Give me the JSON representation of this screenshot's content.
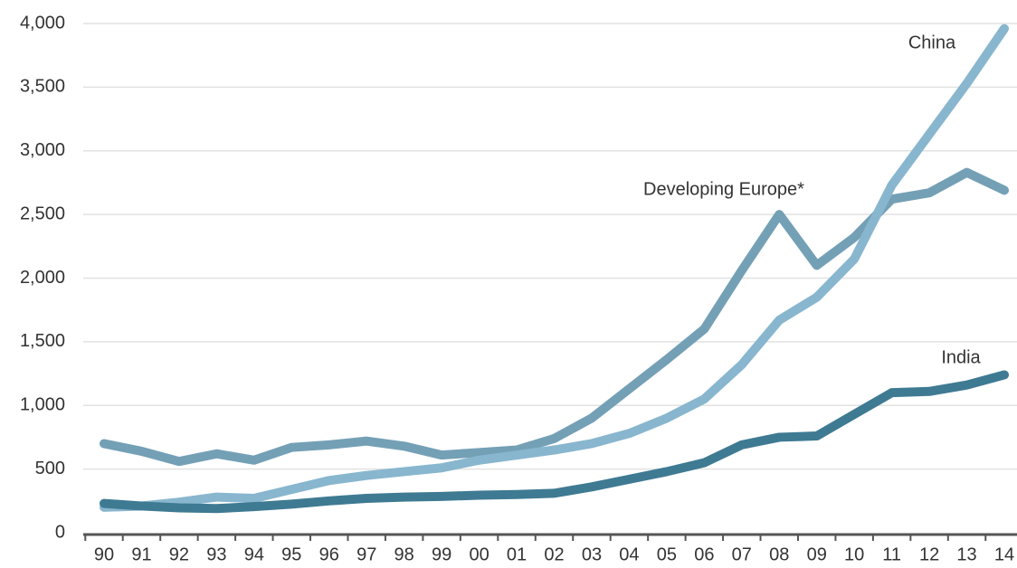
{
  "chart_data": {
    "type": "line",
    "categories": [
      "90",
      "91",
      "92",
      "93",
      "94",
      "95",
      "96",
      "97",
      "98",
      "99",
      "00",
      "01",
      "02",
      "03",
      "04",
      "05",
      "06",
      "07",
      "08",
      "09",
      "10",
      "11",
      "12",
      "13",
      "14"
    ],
    "series": [
      {
        "name": "Developing Europe*",
        "color": "#74a0b6",
        "values": [
          700,
          640,
          560,
          620,
          570,
          670,
          690,
          720,
          680,
          610,
          630,
          650,
          740,
          900,
          1130,
          1360,
          1600,
          2060,
          2500,
          2100,
          2320,
          2620,
          2670,
          2830,
          2690
        ]
      },
      {
        "name": "China",
        "color": "#88b6ce",
        "values": [
          200,
          210,
          240,
          280,
          270,
          340,
          410,
          450,
          480,
          510,
          570,
          610,
          650,
          700,
          780,
          900,
          1050,
          1320,
          1670,
          1850,
          2150,
          2730,
          3130,
          3530,
          3960
        ]
      },
      {
        "name": "India",
        "color": "#3f7a93",
        "values": [
          230,
          210,
          195,
          190,
          205,
          225,
          250,
          270,
          280,
          285,
          295,
          300,
          310,
          360,
          420,
          480,
          550,
          690,
          750,
          760,
          930,
          1100,
          1110,
          1160,
          1240
        ]
      }
    ],
    "ylim": [
      0,
      4000
    ],
    "yticks": [
      0,
      500,
      {
        "value": 1000,
        "label": "1,000"
      },
      {
        "value": 1500,
        "label": "1,500"
      },
      {
        "value": 2000,
        "label": "2,000"
      },
      {
        "value": 2500,
        "label": "2,500"
      },
      {
        "value": 3000,
        "label": "3,000"
      },
      {
        "value": 3500,
        "label": "3,500"
      },
      {
        "value": 4000,
        "label": "4,000"
      }
    ],
    "grid": true
  }
}
